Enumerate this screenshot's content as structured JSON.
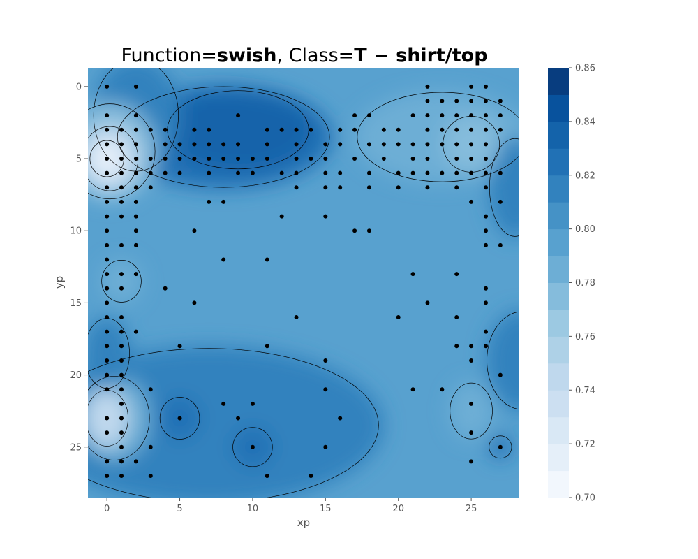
{
  "chart_data": {
    "type": "contour",
    "title": {
      "prefix": "Function=",
      "function": "swish",
      "middle": ", Class=",
      "class_label": "T − shirt/top"
    },
    "xlabel": "xp",
    "ylabel": "yp",
    "xlim": [
      -1.3,
      28.3
    ],
    "ylim": [
      28.5,
      -1.3
    ],
    "y_inverted": true,
    "xticks": [
      0,
      5,
      10,
      15,
      20,
      25
    ],
    "yticks": [
      0,
      5,
      10,
      15,
      20,
      25
    ],
    "grid": false,
    "colormap": "Blues",
    "colorbar": {
      "min": 0.7,
      "max": 0.86,
      "ticks": [
        "0.70",
        "0.72",
        "0.74",
        "0.76",
        "0.78",
        "0.80",
        "0.82",
        "0.84",
        "0.86"
      ],
      "levels": [
        0.7,
        0.71,
        0.72,
        0.73,
        0.74,
        0.75,
        0.76,
        0.77,
        0.78,
        0.79,
        0.8,
        0.81,
        0.82,
        0.83,
        0.84,
        0.85,
        0.86
      ],
      "colors": [
        "#f2f7fd",
        "#e5eff9",
        "#d9e8f5",
        "#ccdff1",
        "#bfd8ed",
        "#aed1e7",
        "#9cc9e2",
        "#85bcdc",
        "#6daed5",
        "#58a1cf",
        "#4592c6",
        "#3282be",
        "#2171b5",
        "#1463aa",
        "#08529d",
        "#083d7f"
      ]
    },
    "baseline_value": 0.795,
    "regions": [
      {
        "x": 9,
        "y": 3,
        "rx": 5,
        "ry": 2.8,
        "value": 0.835
      },
      {
        "x": 8,
        "y": 3.5,
        "rx": 7.5,
        "ry": 3.6,
        "value": 0.82
      },
      {
        "x": 2,
        "y": 2,
        "rx": 3,
        "ry": 4,
        "value": 0.815
      },
      {
        "x": 23,
        "y": 3.5,
        "rx": 6,
        "ry": 3.2,
        "value": 0.78
      },
      {
        "x": 25,
        "y": 4,
        "rx": 2,
        "ry": 2,
        "value": 0.77
      },
      {
        "x": 0,
        "y": 5,
        "rx": 1.2,
        "ry": 1.3,
        "value": 0.71
      },
      {
        "x": 0.2,
        "y": 5,
        "rx": 2,
        "ry": 2.3,
        "value": 0.74
      },
      {
        "x": 0.2,
        "y": 4.5,
        "rx": 3.2,
        "ry": 3.4,
        "value": 0.775
      },
      {
        "x": 0,
        "y": 23,
        "rx": 1.5,
        "ry": 2,
        "value": 0.74
      },
      {
        "x": 0.5,
        "y": 23,
        "rx": 2.5,
        "ry": 3,
        "value": 0.78
      },
      {
        "x": 7,
        "y": 23.5,
        "rx": 12,
        "ry": 5.5,
        "value": 0.815
      },
      {
        "x": 5,
        "y": 23,
        "rx": 1.4,
        "ry": 1.5,
        "value": 0.825
      },
      {
        "x": 10,
        "y": 25,
        "rx": 1.4,
        "ry": 1.4,
        "value": 0.825
      },
      {
        "x": 0,
        "y": 18.5,
        "rx": 1.6,
        "ry": 2.5,
        "value": 0.81
      },
      {
        "x": 1,
        "y": 13.5,
        "rx": 1.4,
        "ry": 1.5,
        "value": 0.78
      },
      {
        "x": 25,
        "y": 22.5,
        "rx": 1.5,
        "ry": 2,
        "value": 0.785
      },
      {
        "x": 28.5,
        "y": 19,
        "rx": 2.5,
        "ry": 3.5,
        "value": 0.815
      },
      {
        "x": 28,
        "y": 7,
        "rx": 1.8,
        "ry": 3.5,
        "value": 0.81
      },
      {
        "x": 27,
        "y": 25,
        "rx": 0.8,
        "ry": 0.8,
        "value": 0.82
      }
    ],
    "points": [
      [
        0,
        0
      ],
      [
        2,
        0
      ],
      [
        22,
        0
      ],
      [
        25,
        0
      ],
      [
        26,
        0
      ],
      [
        22,
        1
      ],
      [
        23,
        1
      ],
      [
        24,
        1
      ],
      [
        25,
        1
      ],
      [
        26,
        1
      ],
      [
        27,
        1
      ],
      [
        0,
        2
      ],
      [
        2,
        2
      ],
      [
        9,
        2
      ],
      [
        17,
        2
      ],
      [
        18,
        2
      ],
      [
        21,
        2
      ],
      [
        22,
        2
      ],
      [
        23,
        2
      ],
      [
        24,
        2
      ],
      [
        25,
        2
      ],
      [
        26,
        2
      ],
      [
        27,
        2
      ],
      [
        0,
        3
      ],
      [
        1,
        3
      ],
      [
        2,
        3
      ],
      [
        3,
        3
      ],
      [
        4,
        3
      ],
      [
        6,
        3
      ],
      [
        7,
        3
      ],
      [
        11,
        3
      ],
      [
        12,
        3
      ],
      [
        13,
        3
      ],
      [
        14,
        3
      ],
      [
        16,
        3
      ],
      [
        17,
        3
      ],
      [
        19,
        3
      ],
      [
        20,
        3
      ],
      [
        22,
        3
      ],
      [
        23,
        3
      ],
      [
        24,
        3
      ],
      [
        25,
        3
      ],
      [
        26,
        3
      ],
      [
        27,
        3
      ],
      [
        0,
        4
      ],
      [
        1,
        4
      ],
      [
        2,
        4
      ],
      [
        4,
        4
      ],
      [
        5,
        4
      ],
      [
        6,
        4
      ],
      [
        7,
        4
      ],
      [
        8,
        4
      ],
      [
        9,
        4
      ],
      [
        11,
        4
      ],
      [
        13,
        4
      ],
      [
        15,
        4
      ],
      [
        16,
        4
      ],
      [
        18,
        4
      ],
      [
        19,
        4
      ],
      [
        20,
        4
      ],
      [
        21,
        4
      ],
      [
        22,
        4
      ],
      [
        23,
        4
      ],
      [
        24,
        4
      ],
      [
        25,
        4
      ],
      [
        26,
        4
      ],
      [
        0,
        5
      ],
      [
        1,
        5
      ],
      [
        2,
        5
      ],
      [
        3,
        5
      ],
      [
        4,
        5
      ],
      [
        5,
        5
      ],
      [
        6,
        5
      ],
      [
        7,
        5
      ],
      [
        8,
        5
      ],
      [
        9,
        5
      ],
      [
        10,
        5
      ],
      [
        11,
        5
      ],
      [
        13,
        5
      ],
      [
        14,
        5
      ],
      [
        15,
        5
      ],
      [
        17,
        5
      ],
      [
        19,
        5
      ],
      [
        21,
        5
      ],
      [
        22,
        5
      ],
      [
        24,
        5
      ],
      [
        25,
        5
      ],
      [
        26,
        5
      ],
      [
        0,
        6
      ],
      [
        1,
        6
      ],
      [
        2,
        6
      ],
      [
        3,
        6
      ],
      [
        4,
        6
      ],
      [
        5,
        6
      ],
      [
        7,
        6
      ],
      [
        9,
        6
      ],
      [
        10,
        6
      ],
      [
        12,
        6
      ],
      [
        13,
        6
      ],
      [
        15,
        6
      ],
      [
        16,
        6
      ],
      [
        18,
        6
      ],
      [
        20,
        6
      ],
      [
        21,
        6
      ],
      [
        22,
        6
      ],
      [
        23,
        6
      ],
      [
        24,
        6
      ],
      [
        25,
        6
      ],
      [
        26,
        6
      ],
      [
        27,
        6
      ],
      [
        0,
        7
      ],
      [
        1,
        7
      ],
      [
        2,
        7
      ],
      [
        3,
        7
      ],
      [
        13,
        7
      ],
      [
        15,
        7
      ],
      [
        16,
        7
      ],
      [
        18,
        7
      ],
      [
        20,
        7
      ],
      [
        22,
        7
      ],
      [
        24,
        7
      ],
      [
        26,
        7
      ],
      [
        0,
        8
      ],
      [
        1,
        8
      ],
      [
        2,
        8
      ],
      [
        7,
        8
      ],
      [
        8,
        8
      ],
      [
        25,
        8
      ],
      [
        27,
        8
      ],
      [
        0,
        9
      ],
      [
        1,
        9
      ],
      [
        2,
        9
      ],
      [
        12,
        9
      ],
      [
        15,
        9
      ],
      [
        26,
        9
      ],
      [
        0,
        10
      ],
      [
        2,
        10
      ],
      [
        6,
        10
      ],
      [
        17,
        10
      ],
      [
        18,
        10
      ],
      [
        26,
        10
      ],
      [
        0,
        11
      ],
      [
        1,
        11
      ],
      [
        2,
        11
      ],
      [
        26,
        11
      ],
      [
        27,
        11
      ],
      [
        0,
        12
      ],
      [
        8,
        12
      ],
      [
        11,
        12
      ],
      [
        0,
        13
      ],
      [
        1,
        13
      ],
      [
        2,
        13
      ],
      [
        21,
        13
      ],
      [
        24,
        13
      ],
      [
        0,
        14
      ],
      [
        1,
        14
      ],
      [
        4,
        14
      ],
      [
        26,
        14
      ],
      [
        0,
        15
      ],
      [
        6,
        15
      ],
      [
        22,
        15
      ],
      [
        26,
        15
      ],
      [
        0,
        16
      ],
      [
        1,
        16
      ],
      [
        13,
        16
      ],
      [
        20,
        16
      ],
      [
        24,
        16
      ],
      [
        0,
        17
      ],
      [
        1,
        17
      ],
      [
        2,
        17
      ],
      [
        26,
        17
      ],
      [
        0,
        18
      ],
      [
        1,
        18
      ],
      [
        5,
        18
      ],
      [
        11,
        18
      ],
      [
        24,
        18
      ],
      [
        25,
        18
      ],
      [
        26,
        18
      ],
      [
        0,
        19
      ],
      [
        1,
        19
      ],
      [
        15,
        19
      ],
      [
        25,
        19
      ],
      [
        0,
        20
      ],
      [
        1,
        20
      ],
      [
        27,
        20
      ],
      [
        0,
        21
      ],
      [
        1,
        21
      ],
      [
        3,
        21
      ],
      [
        15,
        21
      ],
      [
        21,
        21
      ],
      [
        23,
        21
      ],
      [
        1,
        22
      ],
      [
        8,
        22
      ],
      [
        10,
        22
      ],
      [
        25,
        22
      ],
      [
        0,
        23
      ],
      [
        1,
        23
      ],
      [
        5,
        23
      ],
      [
        9,
        23
      ],
      [
        16,
        23
      ],
      [
        0,
        24
      ],
      [
        1,
        24
      ],
      [
        25,
        24
      ],
      [
        1,
        25
      ],
      [
        3,
        25
      ],
      [
        10,
        25
      ],
      [
        15,
        25
      ],
      [
        27,
        25
      ],
      [
        0,
        26
      ],
      [
        1,
        26
      ],
      [
        2,
        26
      ],
      [
        25,
        26
      ],
      [
        0,
        27
      ],
      [
        1,
        27
      ],
      [
        3,
        27
      ],
      [
        11,
        27
      ],
      [
        14,
        27
      ]
    ]
  }
}
